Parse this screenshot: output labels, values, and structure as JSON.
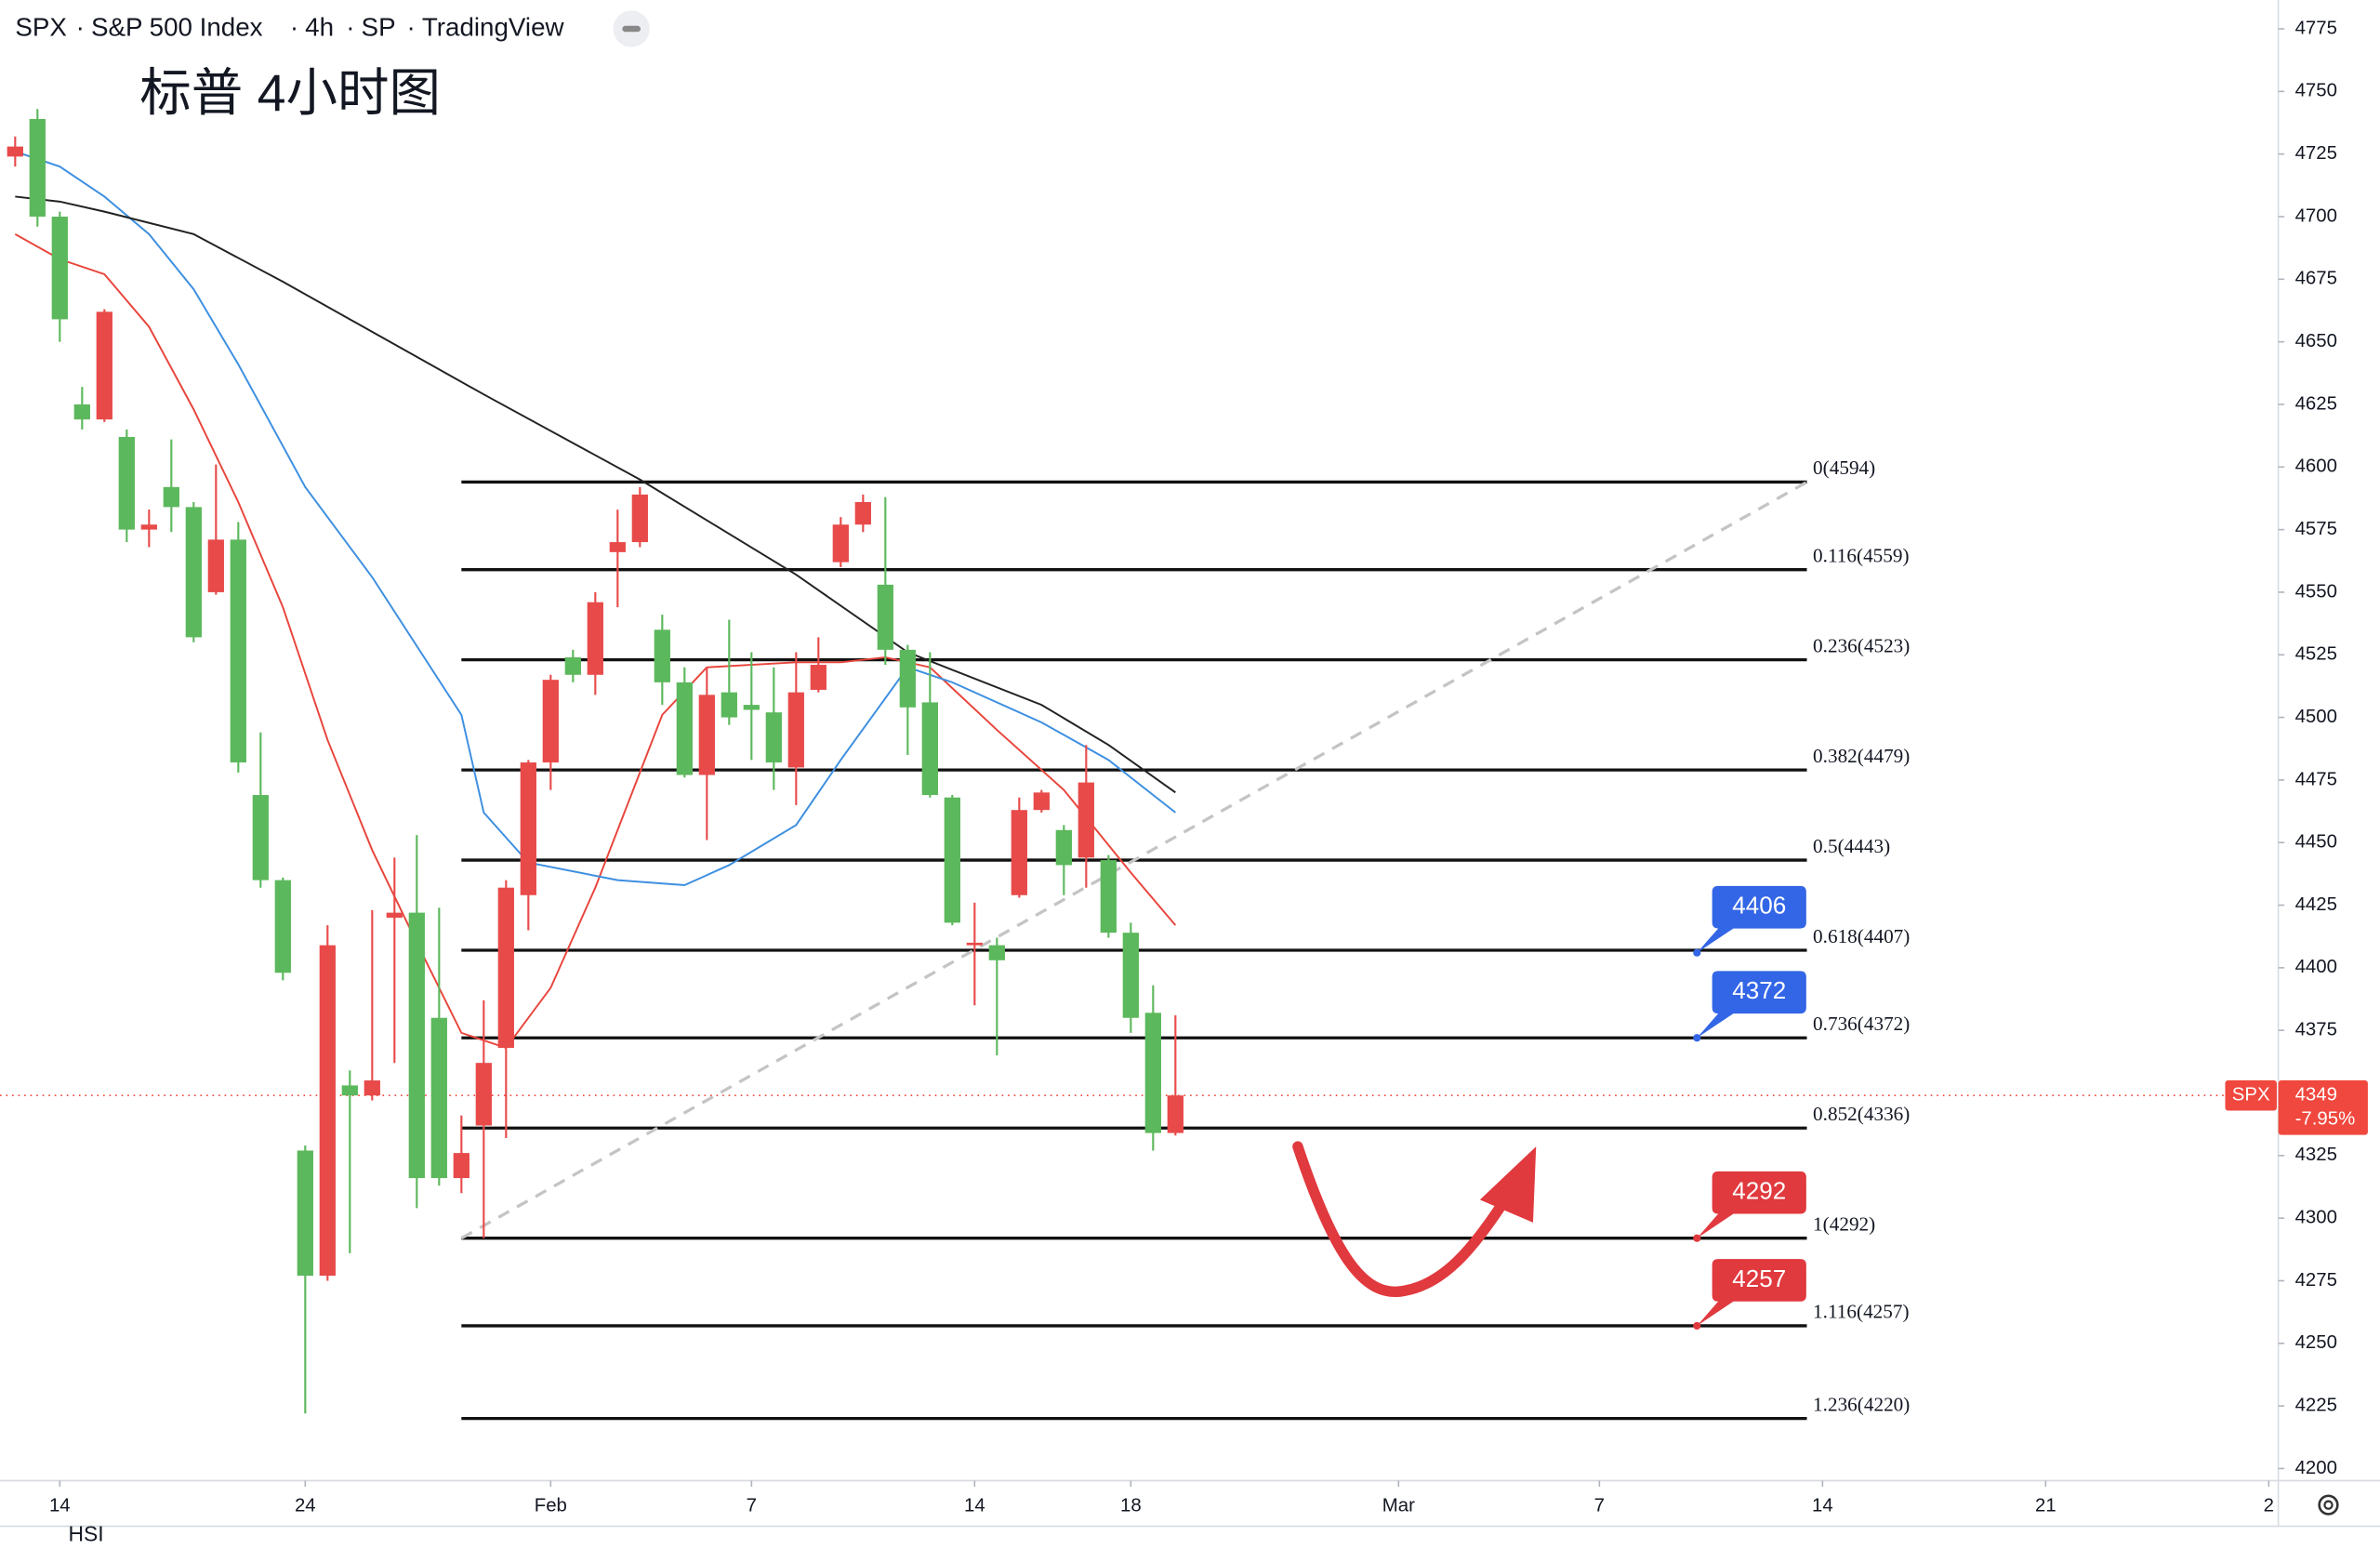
{
  "chart_data": {
    "type": "candlestick",
    "symbol": "SPX",
    "name": "S&P 500 Index",
    "interval": "4h",
    "exchange": "SP",
    "source": "TradingView",
    "annotation": "标普 4小时图",
    "watermark": "HSI",
    "up_color": "#e84a4a",
    "down_color": "#5cb85c",
    "open": [
      4724,
      4739,
      4700,
      4625,
      4619,
      4612,
      4575,
      4592,
      4584,
      4550,
      4571,
      4469,
      4435,
      4327,
      4277,
      4353,
      4349,
      4420,
      4422,
      4380,
      4316,
      4337,
      4368,
      4429,
      4482,
      4524,
      4517,
      4566,
      4570,
      4535,
      4514,
      4477,
      4510,
      4505,
      4502,
      4480,
      4511,
      4562,
      4577,
      4553,
      4527,
      4506,
      4468,
      4409,
      4409,
      4429,
      4463,
      4455,
      4444,
      4443,
      4414,
      4382,
      4334
    ],
    "high": [
      4732,
      4743,
      4702,
      4632,
      4663,
      4615,
      4583,
      4611,
      4586,
      4601,
      4578,
      4494,
      4436,
      4329,
      4417,
      4359,
      4423,
      4444,
      4453,
      4424,
      4341,
      4387,
      4435,
      4483,
      4517,
      4527,
      4550,
      4583,
      4592,
      4541,
      4520,
      4520,
      4539,
      4526,
      4520,
      4526,
      4532,
      4580,
      4589,
      4588,
      4529,
      4526,
      4469,
      4426,
      4412,
      4468,
      4471,
      4457,
      4489,
      4445,
      4418,
      4393,
      4381
    ],
    "low": [
      4720,
      4696,
      4650,
      4615,
      4618,
      4570,
      4568,
      4574,
      4530,
      4549,
      4478,
      4432,
      4395,
      4222,
      4275,
      4286,
      4347,
      4362,
      4304,
      4313,
      4310,
      4292,
      4332,
      4415,
      4471,
      4514,
      4509,
      4544,
      4568,
      4505,
      4476,
      4451,
      4497,
      4483,
      4471,
      4465,
      4510,
      4560,
      4574,
      4521,
      4485,
      4468,
      4417,
      4385,
      4365,
      4428,
      4462,
      4429,
      4432,
      4412,
      4374,
      4327,
      4333
    ],
    "close": [
      4728,
      4700,
      4659,
      4619,
      4662,
      4575,
      4577,
      4584,
      4532,
      4571,
      4482,
      4435,
      4398,
      4277,
      4409,
      4349,
      4355,
      4422,
      4316,
      4316,
      4326,
      4362,
      4432,
      4482,
      4515,
      4517,
      4546,
      4570,
      4589,
      4514,
      4477,
      4509,
      4500,
      4503,
      4482,
      4510,
      4521,
      4577,
      4586,
      4527,
      4504,
      4469,
      4418,
      4410,
      4403,
      4463,
      4470,
      4441,
      4474,
      4414,
      4380,
      4334,
      4349
    ],
    "ma": [
      {
        "color": "#e8453c",
        "x": [
          0,
          2,
          4,
          6,
          8,
          10,
          12,
          14,
          16,
          18,
          20,
          22,
          24,
          26,
          29,
          31,
          35,
          37,
          39,
          41,
          44,
          47,
          50,
          52
        ],
        "values": [
          4693,
          4683,
          4677,
          4656,
          4623,
          4586,
          4544,
          4491,
          4447,
          4410,
          4374,
          4368,
          4392,
          4432,
          4501,
          4520,
          4522,
          4522,
          4524,
          4520,
          4495,
          4471,
          4438,
          4417
        ]
      },
      {
        "color": "#3d8fe0",
        "x": [
          0,
          2,
          4,
          6,
          8,
          10,
          13,
          16,
          20,
          21,
          23,
          27,
          30,
          32,
          35,
          37,
          40,
          42,
          46,
          49,
          52
        ],
        "values": [
          4726,
          4720,
          4708,
          4693,
          4671,
          4641,
          4592,
          4556,
          4501,
          4462,
          4442,
          4435,
          4433,
          4441,
          4457,
          4483,
          4520,
          4514,
          4498,
          4483,
          4462
        ]
      },
      {
        "color": "#222222",
        "x": [
          0,
          2,
          4,
          8,
          12,
          16,
          21,
          28,
          35,
          40,
          46,
          49,
          52
        ],
        "values": [
          4708,
          4706,
          4702,
          4693,
          4674,
          4654,
          4629,
          4595,
          4557,
          4526,
          4505,
          4489,
          4470
        ]
      }
    ],
    "fib": {
      "levels": [
        {
          "value": 4594,
          "label": "0(4594)"
        },
        {
          "value": 4559,
          "label": "0.116(4559)"
        },
        {
          "value": 4523,
          "label": "0.236(4523)"
        },
        {
          "value": 4479,
          "label": "0.382(4479)"
        },
        {
          "value": 4443,
          "label": "0.5(4443)"
        },
        {
          "value": 4407,
          "label": "0.618(4407)"
        },
        {
          "value": 4372,
          "label": "0.736(4372)"
        },
        {
          "value": 4336,
          "label": "0.852(4336)"
        },
        {
          "value": 4292,
          "label": "1(4292)"
        },
        {
          "value": 4257,
          "label": "1.116(4257)"
        },
        {
          "value": 4220,
          "label": "1.236(4220)"
        }
      ],
      "x_range": [
        20,
        80.3
      ]
    },
    "callouts": [
      {
        "value": 4406,
        "color": "#3366e6"
      },
      {
        "value": 4372,
        "color": "#3366e6"
      },
      {
        "value": 4292,
        "color": "#e0393e"
      },
      {
        "value": 4257,
        "color": "#e0393e"
      }
    ],
    "last": {
      "symbol": "SPX",
      "value": 4349,
      "change": "-7.95%",
      "color": "#f0483e"
    },
    "ylim": [
      4200,
      4775
    ],
    "yticks": [
      4200,
      4225,
      4250,
      4275,
      4300,
      4325,
      4350,
      4375,
      4400,
      4425,
      4450,
      4475,
      4500,
      4525,
      4550,
      4575,
      4600,
      4625,
      4650,
      4675,
      4700,
      4725,
      4750,
      4775
    ],
    "xlim": [
      -0.68,
      101.36
    ],
    "xticks": [
      {
        "value": 2,
        "label": "14"
      },
      {
        "value": 13,
        "label": "24"
      },
      {
        "value": 24,
        "label": "Feb"
      },
      {
        "value": 33,
        "label": "7"
      },
      {
        "value": 43,
        "label": "14"
      },
      {
        "value": 50,
        "label": "18"
      },
      {
        "value": 62,
        "label": "Mar"
      },
      {
        "value": 71,
        "label": "7"
      },
      {
        "value": 81,
        "label": "14"
      },
      {
        "value": 91,
        "label": "21"
      },
      {
        "value": 101,
        "label": "2"
      }
    ]
  }
}
